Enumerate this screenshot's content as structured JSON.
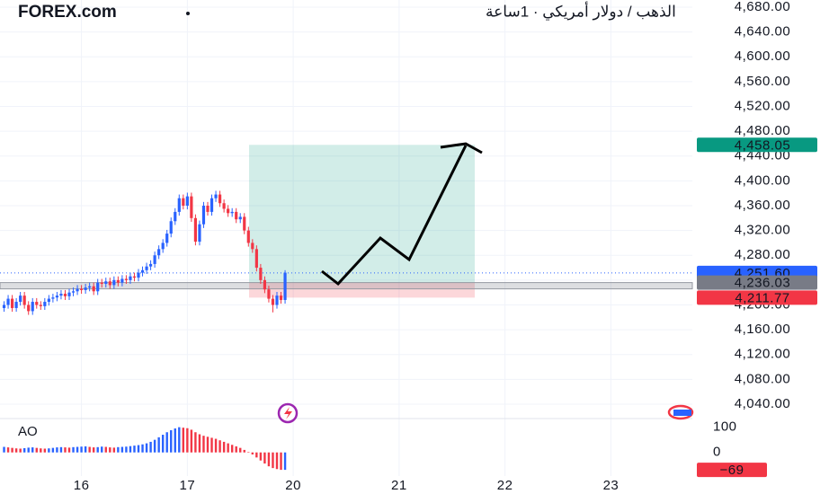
{
  "header": {
    "source": "FOREX.com",
    "title": "الذهب / دولار أمريكي · 1ساعة"
  },
  "chart_data": [
    {
      "type": "candlestick",
      "x": [
        -19,
        -18,
        -17,
        -16,
        -15,
        -14,
        -13,
        -12,
        -11,
        -10,
        -9,
        -8,
        -7,
        -6,
        -5,
        -4,
        -3,
        -2,
        -1,
        0,
        1,
        2,
        3,
        4,
        5,
        6,
        7,
        8,
        9,
        10,
        11,
        12,
        13,
        14,
        15,
        16,
        17,
        18,
        19,
        20,
        21,
        22,
        23,
        24,
        25,
        26,
        27,
        28,
        29,
        30,
        31,
        32,
        33,
        34,
        35,
        36,
        37,
        38,
        39,
        40,
        41,
        42,
        43,
        44,
        45,
        46,
        47,
        48,
        49,
        50
      ],
      "open": [
        4195,
        4200,
        4210,
        4195,
        4205,
        4215,
        4200,
        4190,
        4205,
        4200,
        4198,
        4205,
        4210,
        4212,
        4215,
        4218,
        4214,
        4220,
        4222,
        4226,
        4224,
        4228,
        4230,
        4222,
        4236,
        4234,
        4238,
        4232,
        4240,
        4236,
        4242,
        4240,
        4246,
        4244,
        4252,
        4256,
        4262,
        4266,
        4280,
        4290,
        4300,
        4315,
        4335,
        4350,
        4372,
        4360,
        4375,
        4340,
        4302,
        4330,
        4360,
        4350,
        4372,
        4378,
        4364,
        4355,
        4348,
        4350,
        4338,
        4342,
        4320,
        4300,
        4290,
        4260,
        4240,
        4225,
        4210,
        4200,
        4215,
        4208
      ],
      "high": [
        4206,
        4216,
        4216,
        4211,
        4221,
        4221,
        4206,
        4211,
        4211,
        4206,
        4211,
        4216,
        4218,
        4221,
        4224,
        4224,
        4226,
        4228,
        4232,
        4232,
        4234,
        4236,
        4236,
        4242,
        4242,
        4244,
        4244,
        4246,
        4246,
        4248,
        4248,
        4252,
        4252,
        4258,
        4262,
        4268,
        4272,
        4286,
        4296,
        4306,
        4321,
        4341,
        4356,
        4378,
        4378,
        4381,
        4381,
        4346,
        4336,
        4366,
        4366,
        4378,
        4384,
        4384,
        4370,
        4361,
        4356,
        4356,
        4348,
        4348,
        4326,
        4306,
        4296,
        4266,
        4246,
        4231,
        4216,
        4221,
        4221,
        4256
      ],
      "low": [
        4189,
        4194,
        4189,
        4189,
        4199,
        4194,
        4184,
        4184,
        4194,
        4192,
        4192,
        4199,
        4204,
        4206,
        4209,
        4208,
        4208,
        4214,
        4216,
        4218,
        4218,
        4222,
        4216,
        4216,
        4228,
        4228,
        4226,
        4226,
        4230,
        4230,
        4234,
        4234,
        4238,
        4238,
        4246,
        4250,
        4256,
        4260,
        4274,
        4284,
        4294,
        4309,
        4329,
        4344,
        4354,
        4354,
        4334,
        4296,
        4296,
        4324,
        4344,
        4344,
        4366,
        4358,
        4349,
        4342,
        4342,
        4332,
        4332,
        4314,
        4294,
        4284,
        4254,
        4234,
        4219,
        4204,
        4188,
        4194,
        4202,
        4202
      ],
      "close": [
        4200,
        4210,
        4195,
        4205,
        4215,
        4200,
        4190,
        4205,
        4200,
        4198,
        4205,
        4210,
        4212,
        4215,
        4218,
        4214,
        4220,
        4222,
        4226,
        4224,
        4228,
        4230,
        4222,
        4236,
        4234,
        4238,
        4232,
        4240,
        4236,
        4242,
        4240,
        4246,
        4244,
        4252,
        4256,
        4262,
        4266,
        4280,
        4290,
        4300,
        4315,
        4335,
        4350,
        4372,
        4360,
        4375,
        4340,
        4302,
        4330,
        4360,
        4350,
        4372,
        4378,
        4364,
        4355,
        4348,
        4350,
        4338,
        4342,
        4320,
        4300,
        4290,
        4260,
        4240,
        4225,
        4210,
        4200,
        4215,
        4208,
        4252
      ],
      "up_color": "#2962ff",
      "down_color": "#f23645",
      "xlim": [
        -20,
        150
      ],
      "xticks": [
        {
          "value": 0,
          "label": "16"
        },
        {
          "value": 26,
          "label": "17"
        },
        {
          "value": 52,
          "label": "20"
        },
        {
          "value": 78,
          "label": "21"
        },
        {
          "value": 104,
          "label": "22"
        },
        {
          "value": 130,
          "label": "23"
        }
      ],
      "ylim": [
        4040,
        4680
      ],
      "yticks": [
        {
          "value": 4040,
          "label": "4,040.00"
        },
        {
          "value": 4080,
          "label": "4,080.00"
        },
        {
          "value": 4120,
          "label": "4,120.00"
        },
        {
          "value": 4160,
          "label": "4,160.00"
        },
        {
          "value": 4200,
          "label": "4,200.00"
        },
        {
          "value": 4240,
          "label": "4,240.00"
        },
        {
          "value": 4280,
          "label": "4,280.00"
        },
        {
          "value": 4320,
          "label": "4,320.00"
        },
        {
          "value": 4360,
          "label": "4,360.00"
        },
        {
          "value": 4400,
          "label": "4,400.00"
        },
        {
          "value": 4440,
          "label": "4,440.00"
        },
        {
          "value": 4480,
          "label": "4,480.00"
        },
        {
          "value": 4520,
          "label": "4,520.00"
        },
        {
          "value": 4560,
          "label": "4,560.00"
        },
        {
          "value": 4600,
          "label": "4,600.00"
        },
        {
          "value": 4640,
          "label": "4,640.00"
        },
        {
          "value": 4680,
          "label": "4,680.00"
        }
      ],
      "grid": true,
      "price_labels": [
        {
          "value": 4458.05,
          "label": "4,458.05",
          "color": "#089981"
        },
        {
          "value": 4251.6,
          "label": "4,251.60",
          "color": "#2962ff"
        },
        {
          "value": 4236.03,
          "label": "4,236.03",
          "color": "#787b86"
        },
        {
          "value": 4211.77,
          "label": "4,211.77",
          "color": "#f23645"
        }
      ]
    },
    {
      "type": "histogram",
      "name": "AO",
      "values": [
        22,
        20,
        18,
        16,
        15,
        17,
        19,
        20,
        18,
        16,
        15,
        16,
        18,
        20,
        21,
        20,
        19,
        21,
        22,
        23,
        24,
        22,
        20,
        21,
        23,
        22,
        20,
        19,
        21,
        22,
        23,
        25,
        27,
        29,
        32,
        36,
        42,
        50,
        60,
        70,
        80,
        88,
        95,
        100,
        98,
        96,
        90,
        80,
        72,
        66,
        62,
        58,
        54,
        48,
        42,
        36,
        30,
        24,
        18,
        10,
        2,
        -8,
        -20,
        -32,
        -44,
        -55,
        -62,
        -66,
        -69,
        -69
      ],
      "up_color": "#2962ff",
      "down_color": "#f23645",
      "ylim": [
        -90,
        120
      ],
      "yticks": [
        100,
        0
      ],
      "last_label": {
        "value": -69,
        "label": "−69",
        "color": "#f23645"
      }
    }
  ]
}
